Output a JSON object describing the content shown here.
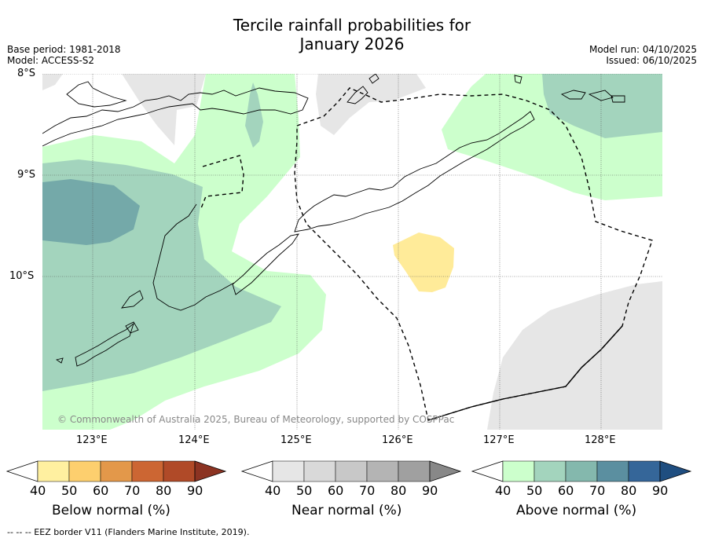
{
  "title": {
    "line1": "Tercile rainfall probabilities for",
    "line2": "January 2026"
  },
  "meta": {
    "base_period": "Base period: 1981-2018",
    "model": "Model: ACCESS-S2",
    "model_run": "Model run: 04/10/2025",
    "issued": "Issued: 06/10/2025"
  },
  "axes": {
    "lat_labels": [
      "8°S",
      "9°S",
      "10°S"
    ],
    "lon_labels": [
      "123°E",
      "124°E",
      "125°E",
      "126°E",
      "127°E",
      "128°E"
    ]
  },
  "copyright": "© Commonwealth of Australia 2025, Bureau of Meteorology, supported by COSPPac",
  "legends": {
    "ticks": [
      "40",
      "50",
      "60",
      "70",
      "80",
      "90"
    ],
    "below": {
      "title": "Below normal (%)",
      "colors": [
        "#fff0a0",
        "#fdcf6e",
        "#e3984a",
        "#cc6633",
        "#b04a28",
        "#8c3322"
      ]
    },
    "near": {
      "title": "Near normal (%)",
      "colors": [
        "#e6e6e6",
        "#d9d9d9",
        "#c8c8c8",
        "#b4b4b4",
        "#a0a0a0",
        "#888888"
      ]
    },
    "above": {
      "title": "Above normal (%)",
      "colors": [
        "#ccffcc",
        "#a3d4bd",
        "#84b8ad",
        "#5b8fa0",
        "#356699",
        "#1f4e80"
      ]
    }
  },
  "footnote": "--  --  -- EEZ border V11 (Flanders Marine Institute, 2019)."
}
